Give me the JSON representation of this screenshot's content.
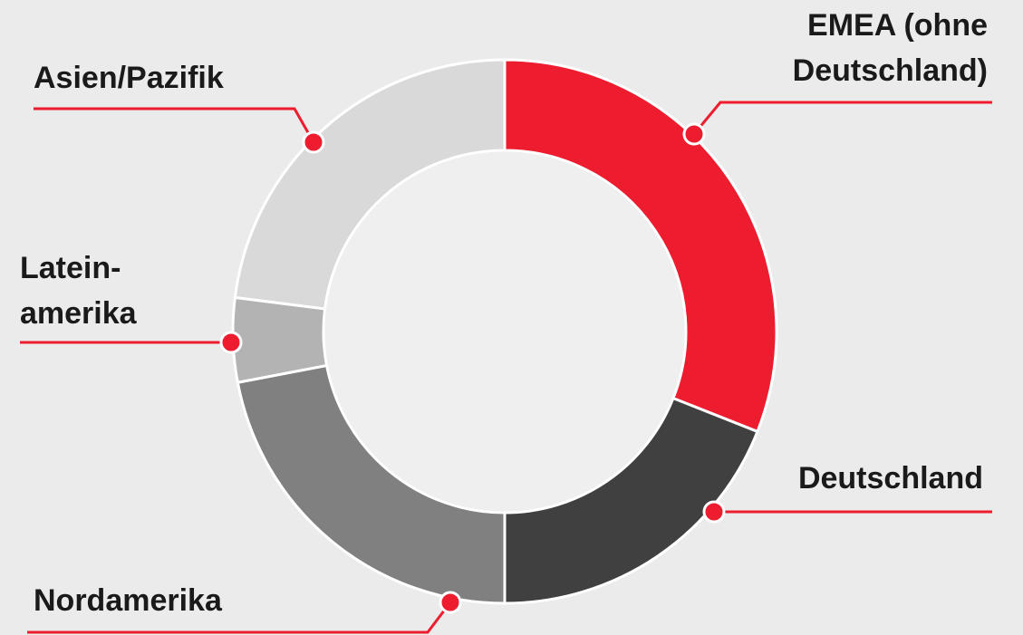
{
  "chart_data": {
    "type": "donut",
    "categories": [
      "EMEA (ohne\nDeutschland)",
      "Deutschland",
      "Nordamerika",
      "Latein-\namerika",
      "Asien/Pazifik"
    ],
    "values": [
      31,
      19,
      22,
      5,
      23
    ],
    "colors": [
      "#ed1c2e",
      "#404040",
      "#808080",
      "#b3b3b3",
      "#d9d9d9"
    ]
  }
}
